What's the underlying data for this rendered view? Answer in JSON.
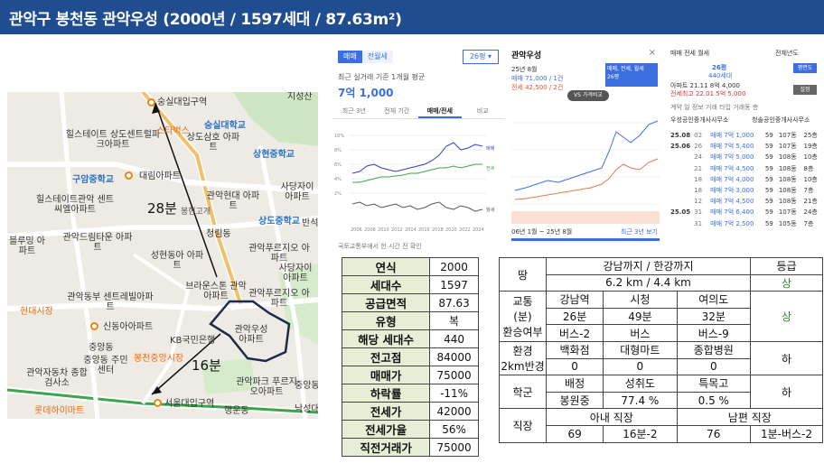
{
  "title": "관악구 봉천동 관악우성 (2000년 / 1597세대 / 87.63m²)",
  "map": {
    "labels": [
      "숭실대입구역",
      "숭실대학교",
      "힐스테이트 상도센트럴파크아파트",
      "상도삼호 아파트",
      "스타벅스",
      "상현중학교",
      "구암중학교",
      "대림아파트",
      "힐스테이트관악 센트씨엘아파트",
      "관악현대 아파트",
      "사당자이 아파트",
      "28분",
      "봉현고개",
      "상도중학교",
      "반석",
      "블루밍 아파트",
      "관악드림타운 아파트",
      "청림동",
      "관악푸르지오 아파트",
      "성현동아 아파트",
      "사당자이 아파트",
      "브라운스톤 관악아파트",
      "관악푸르지오 아파트",
      "관악동부 센트레빌아파트",
      "현대시장",
      "관악우성 아파트",
      "신동아아파트",
      "KB국민은행",
      "중앙동",
      "중앙동 주민센터",
      "봉천중앙시장",
      "16분",
      "관악자동차 종합검사소",
      "서울대입구역",
      "롯데하이마트",
      "행운동",
      "관악파크 푸르지오아파트",
      "낙성대",
      "지성산",
      "중앙동"
    ]
  },
  "panel1": {
    "tab_sale": "매매",
    "tab_jeonse": "전월세",
    "size_select": "26평",
    "recent_label": "최근 실거래 기준 1개월 평균",
    "price": "7억 1,000",
    "tabs": [
      "최근 3년",
      "전체 기간",
      "매매/전세",
      "비교"
    ],
    "legend": [
      "매매",
      "전세",
      "월세"
    ],
    "y_ticks": [
      "10%",
      "8%",
      "6%",
      "4%",
      "2%",
      "0%"
    ],
    "x_ticks": [
      "2006",
      "2008",
      "2010",
      "2012",
      "2014",
      "2016",
      "2018",
      "2020",
      "2022",
      "2024"
    ],
    "footer": "국토교통부에서 한 시간 전 확인"
  },
  "panel2": {
    "title": "관악우성",
    "close": "×",
    "date": "25년 8월",
    "sale_line": "매매 71,000 / 1건",
    "jeonse_line": "전세 42,500 / 2건",
    "box_line1": "매매, 전세, 월세",
    "box_line2": "26평",
    "vs": "VS 가격비교",
    "range": "06년 1월 ~ 25년 8월",
    "range_link": "최근 3년 보기"
  },
  "panel3": {
    "tabs_line": "매매 전세 월세",
    "period": "전체년도",
    "size_line": "26평",
    "size_line2": "440세대",
    "quote1": "아파트 21.11 8억 4,000",
    "quote2": "전세최고 22.01 5억 5,000",
    "btn_view": "평면도",
    "btn_set": "설정",
    "head": [
      "계약",
      "일",
      "정보",
      "거래",
      "타입",
      "거래동",
      "층"
    ],
    "agent1": "우성공인중개사사무소",
    "agent2": "청솔공인중개사사무소",
    "rows": [
      [
        "25.08",
        "02",
        "매매 7억 1,000",
        "59",
        "107동",
        "25층"
      ],
      [
        "25.06",
        "26",
        "매매 7억 5,400",
        "59",
        "107동",
        "19층"
      ],
      [
        "",
        "24",
        "매매 7억 5,000",
        "59",
        "108동",
        "10층"
      ],
      [
        "",
        "21",
        "매매 7억 4,500",
        "59",
        "108동",
        "8층"
      ],
      [
        "",
        "18",
        "매매 7억 4,000",
        "59",
        "108동",
        "10층"
      ],
      [
        "",
        "18",
        "매매 7억 3,000",
        "59",
        "108동",
        "7층"
      ],
      [
        "",
        "12",
        "매매 7억 4,500",
        "59",
        "108동",
        "21층"
      ],
      [
        "25.05",
        "31",
        "매매 7억 6,400",
        "59",
        "107동",
        "24층"
      ],
      [
        "",
        "31",
        "매매 7억 2,500",
        "59",
        "105동",
        "7층"
      ]
    ]
  },
  "stats": [
    {
      "k": "연식",
      "v": "2000"
    },
    {
      "k": "세대수",
      "v": "1597"
    },
    {
      "k": "공급면적",
      "v": "87.63"
    },
    {
      "k": "유형",
      "v": "복"
    },
    {
      "k": "해당 세대수",
      "v": "440"
    },
    {
      "k": "전고점",
      "v": "84000"
    },
    {
      "k": "매매가",
      "v": "75000"
    },
    {
      "k": "하락률",
      "v": "-11%"
    },
    {
      "k": "전세가",
      "v": "42000"
    },
    {
      "k": "전세가율",
      "v": "56%"
    },
    {
      "k": "직전거래가",
      "v": "75000"
    }
  ],
  "location": {
    "land": "땅",
    "land_head": "강남까지 / 한강까지",
    "grade_head": "등급",
    "land_val": "6.2 km / 4.4 km",
    "land_grade": "상",
    "transit_label_1": "교통",
    "transit_label_2": "(분)",
    "transit_label_3": "환승여부",
    "transit_stations": [
      "강남역",
      "시청",
      "여의도"
    ],
    "transit_times": [
      "26분",
      "49분",
      "32분"
    ],
    "transit_modes": [
      "버스-2",
      "버스",
      "버스-9"
    ],
    "transit_grade": "상",
    "env_label_1": "환경",
    "env_label_2": "2km반경",
    "env_items": [
      "백화점",
      "대형마트",
      "종합병원"
    ],
    "env_counts": [
      "0",
      "0",
      "0"
    ],
    "env_grade": "하",
    "school_label": "학군",
    "school_items": [
      "배정",
      "성취도",
      "특목고"
    ],
    "school_vals": [
      "봉원중",
      "77.4 %",
      "0.5 %"
    ],
    "school_grade": "하",
    "work_label": "직장",
    "work_wife": "아내 직장",
    "work_husband": "남편 직장",
    "work_vals": [
      "69",
      "16분-2",
      "76",
      "1분-버스-2"
    ]
  }
}
